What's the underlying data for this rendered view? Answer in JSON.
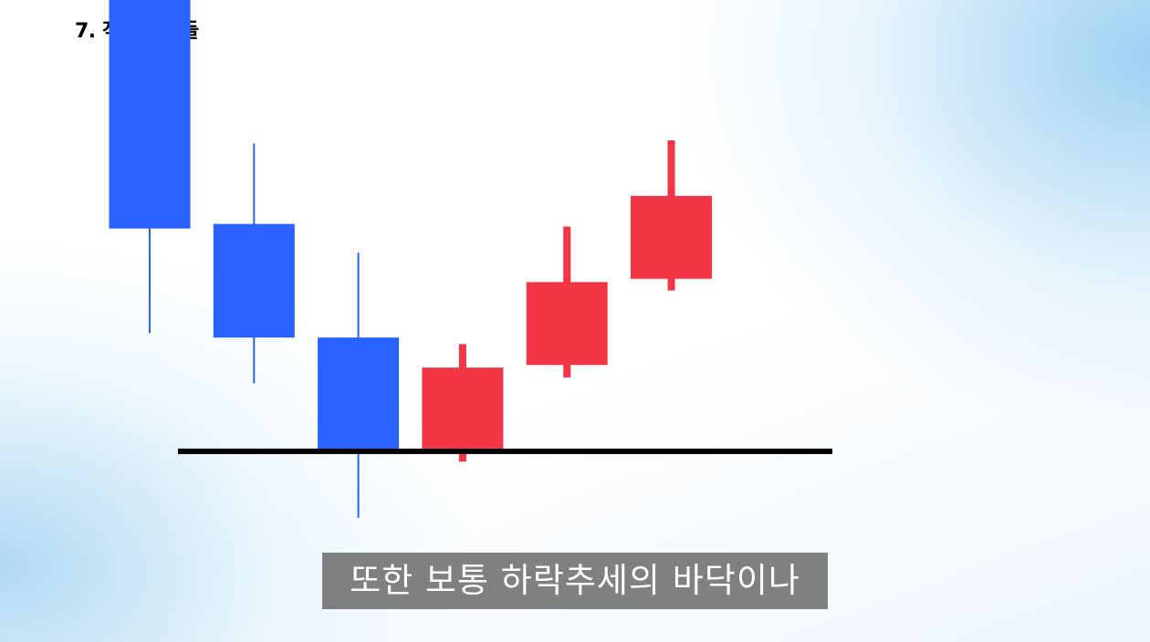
{
  "title": "7. 적삼병 캔들",
  "subtitle": "또한 보통 하락추세의 바닥이나",
  "colors": {
    "bearish": "#2962ff",
    "bullish": "#f23645",
    "support_line": "#000000"
  },
  "chart_data": {
    "type": "candlestick",
    "candles": [
      {
        "open": 100,
        "high": 100,
        "low": 49,
        "close": 65
      },
      {
        "open": 65.7,
        "high": 78,
        "low": 41.3,
        "close": 48.3
      },
      {
        "open": 48.3,
        "high": 61.3,
        "low": 20.7,
        "close": 31.3
      },
      {
        "open": 31.3,
        "high": 47.3,
        "low": 29.3,
        "close": 43.7
      },
      {
        "open": 44.1,
        "high": 65.3,
        "low": 42.2,
        "close": 56.8
      },
      {
        "open": 57.3,
        "high": 78.5,
        "low": 55.5,
        "close": 70
      }
    ],
    "support_level": 31.3,
    "ylim": [
      0,
      100
    ]
  }
}
